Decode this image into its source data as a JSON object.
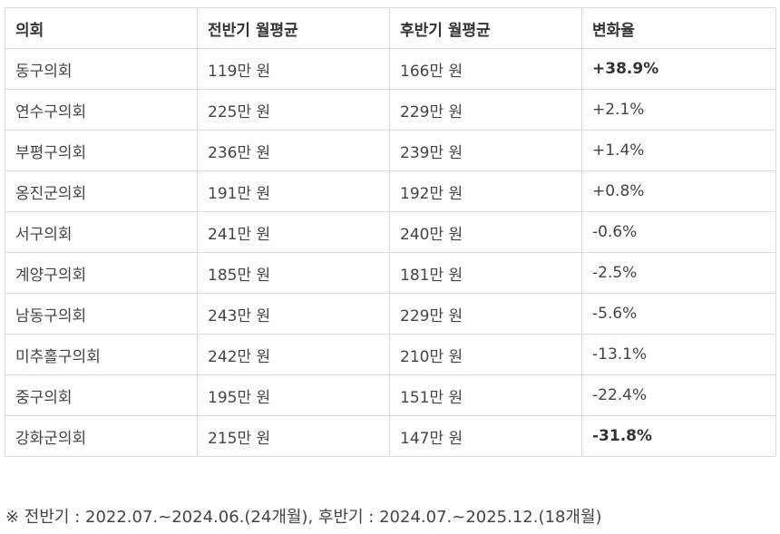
{
  "table": {
    "headers": [
      "의회",
      "전반기 월평균",
      "후반기 월평균",
      "변화율"
    ],
    "rows": [
      {
        "council": "동구의회",
        "first_half": "119만 원",
        "second_half": "166만 원",
        "change": "+38.9%",
        "bold_change": true
      },
      {
        "council": "연수구의회",
        "first_half": "225만 원",
        "second_half": "229만 원",
        "change": "+2.1%",
        "bold_change": false
      },
      {
        "council": "부평구의회",
        "first_half": "236만 원",
        "second_half": "239만 원",
        "change": "+1.4%",
        "bold_change": false
      },
      {
        "council": "옹진군의회",
        "first_half": "191만 원",
        "second_half": "192만 원",
        "change": "+0.8%",
        "bold_change": false
      },
      {
        "council": "서구의회",
        "first_half": "241만 원",
        "second_half": "240만 원",
        "change": "-0.6%",
        "bold_change": false
      },
      {
        "council": "계양구의회",
        "first_half": "185만 원",
        "second_half": "181만 원",
        "change": "-2.5%",
        "bold_change": false
      },
      {
        "council": "남동구의회",
        "first_half": "243만 원",
        "second_half": "229만 원",
        "change": "-5.6%",
        "bold_change": false
      },
      {
        "council": "미추홀구의회",
        "first_half": "242만 원",
        "second_half": "210만 원",
        "change": "-13.1%",
        "bold_change": false
      },
      {
        "council": "중구의회",
        "first_half": "195만 원",
        "second_half": "151만 원",
        "change": "-22.4%",
        "bold_change": false
      },
      {
        "council": "강화군의회",
        "first_half": "215만 원",
        "second_half": "147만 원",
        "change": "-31.8%",
        "bold_change": true
      }
    ]
  },
  "footnote": "※ 전반기 : 2022.07.~2024.06.(24개월), 후반기 : 2024.07.~2025.12.(18개월)"
}
